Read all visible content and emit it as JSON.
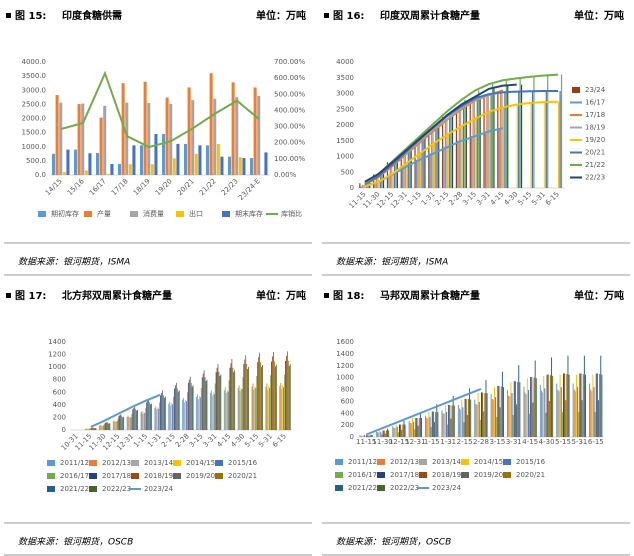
{
  "chart_data": [
    {
      "type": "bar",
      "figure": "图 15:",
      "title": "印度食糖供需",
      "unit": "单位：万吨",
      "source": "数据来源：银河期货，ISMA",
      "categories": [
        "14/15",
        "15/16",
        "16/17",
        "17/18",
        "18/19",
        "19/20",
        "20/21",
        "21/22",
        "22/23",
        "23/24-E"
      ],
      "ylim": [
        0,
        4000
      ],
      "yticks": [
        {
          "value": 0,
          "label": "0.0"
        },
        {
          "value": 500,
          "label": "500.0"
        },
        {
          "value": 1000,
          "label": "1000.0"
        },
        {
          "value": 1500,
          "label": "1500.0"
        },
        {
          "value": 2000,
          "label": "2000.0"
        },
        {
          "value": 2500,
          "label": "2500.0"
        },
        {
          "value": 3000,
          "label": "3000.0"
        },
        {
          "value": 3500,
          "label": "3500.0"
        },
        {
          "value": 4000,
          "label": "4000.0"
        }
      ],
      "y2lim": [
        0,
        700
      ],
      "y2ticks": [
        {
          "value": 0,
          "label": "0.00%"
        },
        {
          "value": 100,
          "label": "100.00%"
        },
        {
          "value": 200,
          "label": "200.00%"
        },
        {
          "value": 300,
          "label": "300.00%"
        },
        {
          "value": 400,
          "label": "400.00%"
        },
        {
          "value": 500,
          "label": "500.00%"
        },
        {
          "value": 600,
          "label": "600.00%"
        },
        {
          "value": 700,
          "label": "700.00%"
        }
      ],
      "series": [
        {
          "name": "期初库存",
          "color": "#5b9bd5",
          "values": [
            750,
            900,
            780,
            390,
            1050,
            1450,
            1100,
            1050,
            650,
            600
          ]
        },
        {
          "name": "产量",
          "color": "#ed7d31",
          "values": [
            2830,
            2510,
            2030,
            3250,
            3300,
            2740,
            3100,
            3600,
            3280,
            3100
          ]
        },
        {
          "name": "消费量",
          "color": "#a5a5a5",
          "values": [
            2560,
            2530,
            2450,
            2560,
            2550,
            2520,
            2650,
            2700,
            2750,
            2800
          ]
        },
        {
          "name": "出口",
          "color": "#ffc000",
          "values": [
            100,
            160,
            40,
            380,
            380,
            590,
            750,
            1100,
            630,
            0
          ]
        },
        {
          "name": "期末库存",
          "color": "#4472c4",
          "values": [
            900,
            770,
            390,
            1050,
            1450,
            1100,
            1050,
            650,
            600,
            800
          ]
        },
        {
          "name": "库销比",
          "color": "#70ad47",
          "type": "line",
          "axis": "y2",
          "values": [
            285,
            322,
            630,
            241,
            173,
            210,
            290,
            380,
            460,
            347
          ]
        }
      ]
    },
    {
      "type": "line",
      "figure": "图 16:",
      "title": "印度双周累计食糖产量",
      "unit": "单位：万吨",
      "source": "数据来源：银河期货，ISMA",
      "categories": [
        "11-15",
        "11-30",
        "12-15",
        "12-31",
        "1-15",
        "1-31",
        "2-15",
        "2-28",
        "3-15",
        "3-31",
        "4-15",
        "4-30",
        "5-15",
        "5-31",
        "6-15"
      ],
      "ylim": [
        0,
        4000
      ],
      "yticks": [
        0,
        500,
        1000,
        1500,
        2000,
        2500,
        3000,
        3500,
        4000
      ],
      "series": [
        {
          "name": "23/24",
          "color": "#9e3d12",
          "type": "bar",
          "values": [
            150,
            430,
            820,
            1120,
            1490,
            1870,
            2250,
            2550,
            2790,
            2950,
            3000,
            null,
            null,
            null,
            null
          ]
        },
        {
          "name": "16/17",
          "color": "#5b9bd5",
          "values": [
            50,
            200,
            430,
            680,
            900,
            1100,
            1300,
            1500,
            1650,
            1800,
            1900,
            null,
            null,
            null,
            null
          ]
        },
        {
          "name": "17/18",
          "color": "#ed7d31",
          "values": [
            100,
            350,
            700,
            1080,
            1450,
            1820,
            2180,
            2500,
            2780,
            2950,
            3100,
            null,
            null,
            null,
            null
          ]
        },
        {
          "name": "18/19",
          "color": "#a5a5a5",
          "values": [
            100,
            380,
            750,
            1120,
            1500,
            1880,
            2200,
            2550,
            2800,
            2950,
            3050,
            null,
            null,
            null,
            null
          ]
        },
        {
          "name": "19/20",
          "color": "#ffc000",
          "values": [
            50,
            200,
            450,
            780,
            1100,
            1420,
            1700,
            1960,
            2200,
            2420,
            2560,
            2650,
            2700,
            2730,
            2740
          ]
        },
        {
          "name": "20/21",
          "color": "#4472c4",
          "values": [
            120,
            380,
            750,
            1150,
            1550,
            1950,
            2300,
            2600,
            2850,
            2980,
            3040,
            3060,
            3070,
            3080,
            3080
          ]
        },
        {
          "name": "21/22",
          "color": "#70ad47",
          "values": [
            150,
            450,
            850,
            1250,
            1650,
            2050,
            2450,
            2800,
            3100,
            3300,
            3420,
            3480,
            3530,
            3570,
            3600
          ]
        },
        {
          "name": "22/23",
          "color": "#264478",
          "values": [
            200,
            450,
            820,
            1200,
            1580,
            1950,
            2330,
            2650,
            2900,
            3150,
            3250,
            3280,
            null,
            null,
            null
          ]
        }
      ]
    },
    {
      "type": "bar",
      "figure": "图 17:",
      "title": "北方邦双周累计食糖产量",
      "unit": "单位：万吨",
      "source": "数据来源：银河期货，OSCB",
      "categories": [
        "10-31",
        "11-15",
        "11-30",
        "12-15",
        "12-31",
        "1-15",
        "1-31",
        "2-15",
        "2-28",
        "3-15",
        "3-31",
        "4-15",
        "4-30",
        "5-15",
        "5-31",
        "6-15"
      ],
      "ylim": [
        0,
        1400
      ],
      "yticks": [
        0,
        200,
        400,
        600,
        800,
        1000,
        1200,
        1400
      ],
      "series": [
        {
          "name": "2011/12",
          "color": "#5b9bd5",
          "values": [
            null,
            20,
            70,
            140,
            210,
            280,
            350,
            420,
            480,
            530,
            590,
            630,
            670,
            690,
            690,
            700
          ]
        },
        {
          "name": "2012/13",
          "color": "#ed7d31",
          "values": [
            null,
            20,
            80,
            150,
            230,
            300,
            380,
            450,
            510,
            570,
            630,
            680,
            710,
            740,
            740,
            750
          ]
        },
        {
          "name": "2013/14",
          "color": "#a5a5a5",
          "values": [
            null,
            20,
            70,
            130,
            200,
            260,
            330,
            390,
            440,
            490,
            550,
            590,
            620,
            640,
            640,
            650
          ]
        },
        {
          "name": "2014/15",
          "color": "#ffc000",
          "values": [
            null,
            20,
            70,
            140,
            210,
            280,
            360,
            430,
            480,
            540,
            600,
            640,
            670,
            700,
            700,
            710
          ]
        },
        {
          "name": "2015/16",
          "color": "#4472c4",
          "values": [
            null,
            20,
            70,
            140,
            200,
            270,
            340,
            410,
            460,
            520,
            570,
            610,
            650,
            670,
            670,
            680
          ]
        },
        {
          "name": "2016/17",
          "color": "#70ad47",
          "values": [
            null,
            30,
            90,
            180,
            260,
            350,
            440,
            530,
            600,
            670,
            740,
            790,
            840,
            860,
            870,
            880
          ]
        },
        {
          "name": "2017/18",
          "color": "#264478",
          "values": [
            null,
            30,
            110,
            220,
            330,
            440,
            550,
            660,
            750,
            840,
            920,
            990,
            1050,
            1080,
            1090,
            1100
          ]
        },
        {
          "name": "2018/19",
          "color": "#9e480e",
          "values": [
            null,
            40,
            120,
            240,
            350,
            470,
            590,
            710,
            800,
            900,
            990,
            1060,
            1120,
            1160,
            1170,
            1180
          ]
        },
        {
          "name": "2019/20",
          "color": "#636363",
          "values": [
            null,
            40,
            130,
            250,
            380,
            500,
            630,
            750,
            850,
            950,
            1050,
            1130,
            1190,
            1230,
            1240,
            1250
          ]
        },
        {
          "name": "2020/21",
          "color": "#997300",
          "values": [
            null,
            30,
            110,
            220,
            330,
            440,
            550,
            660,
            750,
            840,
            920,
            990,
            1050,
            1080,
            1090,
            1100
          ]
        },
        {
          "name": "2021/22",
          "color": "#255e91",
          "values": [
            null,
            30,
            100,
            200,
            310,
            410,
            510,
            610,
            690,
            780,
            860,
            920,
            970,
            1000,
            1010,
            1020
          ]
        },
        {
          "name": "2022/23",
          "color": "#43682b",
          "values": [
            null,
            30,
            110,
            210,
            320,
            420,
            530,
            630,
            710,
            800,
            880,
            950,
            1000,
            1030,
            1040,
            1050
          ]
        },
        {
          "name": "2023/24",
          "color": "#5b9bd5",
          "type": "line",
          "values": [
            null,
            50,
            150,
            260,
            370,
            470,
            560,
            null,
            null,
            null,
            null,
            null,
            null,
            null,
            null,
            null
          ]
        }
      ]
    },
    {
      "type": "bar",
      "figure": "图 18:",
      "title": "马邦双周累计食糖产量",
      "unit": "单位：万吨",
      "source": "数据来源：银河期货，OSCB",
      "categories": [
        "11-15",
        "11-30",
        "12-15",
        "12-31",
        "1-15",
        "1-31",
        "2-15",
        "2-28",
        "3-15",
        "3-31",
        "4-15",
        "4-30",
        "5-15",
        "5-31",
        "6-15"
      ],
      "ylim": [
        0,
        1600
      ],
      "yticks": [
        0,
        200,
        400,
        600,
        800,
        1000,
        1200,
        1400,
        1600
      ],
      "series": [
        {
          "name": "2011/12",
          "color": "#5b9bd5",
          "values": [
            30,
            90,
            180,
            270,
            360,
            450,
            540,
            630,
            720,
            790,
            850,
            880,
            900,
            900,
            900
          ]
        },
        {
          "name": "2012/13",
          "color": "#ed7d31",
          "values": [
            20,
            80,
            160,
            240,
            320,
            400,
            480,
            560,
            640,
            700,
            750,
            780,
            800,
            800,
            800
          ]
        },
        {
          "name": "2013/14",
          "color": "#a5a5a5",
          "values": [
            20,
            80,
            150,
            230,
            310,
            390,
            460,
            540,
            620,
            680,
            720,
            750,
            770,
            770,
            770
          ]
        },
        {
          "name": "2014/15",
          "color": "#ffc000",
          "values": [
            30,
            110,
            210,
            320,
            420,
            530,
            630,
            740,
            840,
            920,
            990,
            1030,
            1050,
            1050,
            1050
          ]
        },
        {
          "name": "2015/16",
          "color": "#4472c4",
          "values": [
            30,
            80,
            170,
            250,
            340,
            420,
            500,
            590,
            670,
            740,
            790,
            820,
            840,
            840,
            840
          ]
        },
        {
          "name": "2016/17",
          "color": "#70ad47",
          "values": [
            10,
            40,
            80,
            130,
            170,
            210,
            250,
            290,
            340,
            370,
            390,
            410,
            420,
            420,
            420
          ]
        },
        {
          "name": "2017/18",
          "color": "#264478",
          "values": [
            30,
            110,
            210,
            320,
            430,
            540,
            640,
            750,
            860,
            940,
            1010,
            1050,
            1070,
            1070,
            1070
          ]
        },
        {
          "name": "2018/19",
          "color": "#9e480e",
          "values": [
            30,
            110,
            210,
            320,
            430,
            540,
            640,
            750,
            860,
            940,
            1010,
            1050,
            1070,
            1070,
            1070
          ]
        },
        {
          "name": "2019/20",
          "color": "#636363",
          "values": [
            20,
            60,
            120,
            190,
            250,
            310,
            370,
            430,
            500,
            550,
            580,
            610,
            620,
            620,
            620
          ]
        },
        {
          "name": "2020/21",
          "color": "#997300",
          "values": [
            30,
            110,
            210,
            320,
            420,
            530,
            640,
            740,
            850,
            930,
            1000,
            1040,
            1060,
            1060,
            1060
          ]
        },
        {
          "name": "2021/22",
          "color": "#255e91",
          "values": [
            40,
            140,
            270,
            410,
            550,
            690,
            820,
            960,
            1100,
            1210,
            1290,
            1340,
            1370,
            1370,
            1370
          ]
        },
        {
          "name": "2022/23",
          "color": "#43682b",
          "values": [
            30,
            110,
            210,
            320,
            420,
            530,
            630,
            740,
            840,
            920,
            990,
            1030,
            1050,
            1050,
            1050
          ]
        },
        {
          "name": "2023/24",
          "color": "#5b9bd5",
          "type": "line",
          "values": [
            40,
            150,
            260,
            370,
            480,
            590,
            700,
            810,
            null,
            null,
            null,
            null,
            null,
            null,
            null
          ]
        }
      ]
    }
  ]
}
